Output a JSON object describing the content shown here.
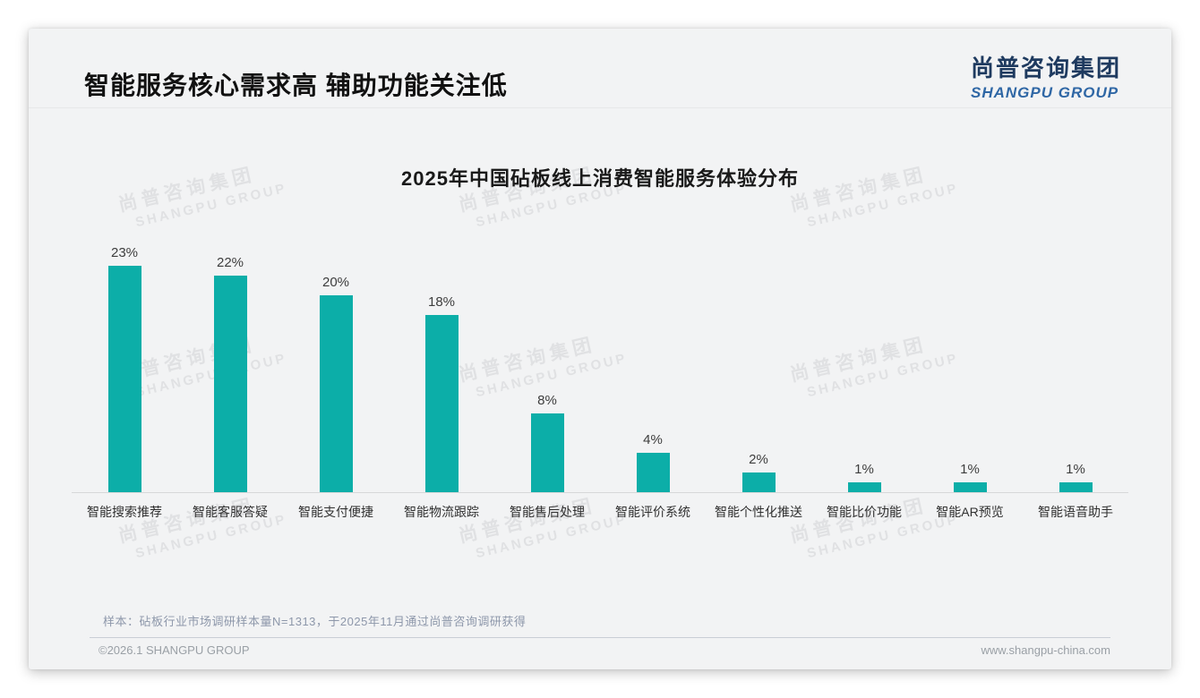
{
  "page": {
    "title": "智能服务核心需求高 辅助功能关注低",
    "logo": {
      "cn": "尚普咨询集团",
      "en": "SHANGPU GROUP"
    },
    "watermark": {
      "line1": "尚普咨询集团",
      "line2": "SHANGPU GROUP"
    },
    "note": "样本：砧板行业市场调研样本量N=1313，于2025年11月通过尚普咨询调研获得",
    "footer": {
      "left": "©2026.1 SHANGPU GROUP",
      "right": "www.shangpu-china.com"
    }
  },
  "colors": {
    "bar": "#0caea8",
    "card_background": "#f2f3f4",
    "logo_cn": "#1e3a5f",
    "logo_en": "#2f67a5",
    "axis_line": "#d6d8d8",
    "note_text": "#8d97aa",
    "footer_text": "#9aa0a6"
  },
  "chart_data": {
    "type": "bar",
    "title": "2025年中国砧板线上消费智能服务体验分布",
    "categories": [
      "智能搜索推荐",
      "智能客服答疑",
      "智能支付便捷",
      "智能物流跟踪",
      "智能售后处理",
      "智能评价系统",
      "智能个性化推送",
      "智能比价功能",
      "智能AR预览",
      "智能语音助手"
    ],
    "values": [
      23,
      22,
      20,
      18,
      8,
      4,
      2,
      1,
      1,
      1
    ],
    "value_suffix": "%",
    "xlabel": "",
    "ylabel": "",
    "ylim": [
      0,
      25
    ],
    "grid": false,
    "legend": null,
    "bar_color": "#0caea8",
    "value_label_position": "above-bar"
  }
}
